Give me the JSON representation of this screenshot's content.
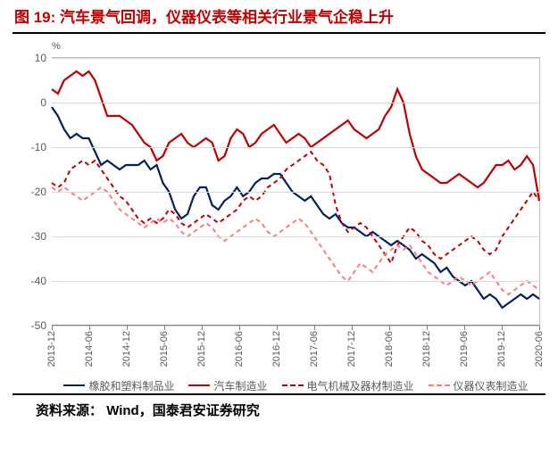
{
  "figure_label": "图 19:",
  "title": "汽车景气回调，仪器仪表等相关行业景气企稳上升",
  "title_color": "#c00000",
  "title_fontsize": 17,
  "source_label": "资料来源：",
  "source_text": "Wind，国泰君安证券研究",
  "chart": {
    "type": "line",
    "y_unit": "%",
    "ylim": [
      -50,
      10
    ],
    "ytick_step": 10,
    "yticks": [
      -50,
      -40,
      -30,
      -20,
      -10,
      0,
      10
    ],
    "grid_color": "#d9d9d9",
    "axis_color": "#808080",
    "background_color": "#ffffff",
    "x_categories": [
      "2013-12",
      "2014-06",
      "2014-12",
      "2015-06",
      "2015-12",
      "2016-06",
      "2016-12",
      "2017-06",
      "2017-12",
      "2018-06",
      "2018-12",
      "2019-06",
      "2019-12",
      "2020-06"
    ],
    "x_points_per_gap": 6,
    "series": [
      {
        "name": "橡胶和塑料制品业",
        "color": "#002060",
        "dash": "solid",
        "line_width": 2.2,
        "values": [
          -1,
          -3,
          -6,
          -8,
          -7,
          -8,
          -8,
          -11,
          -14,
          -13,
          -14,
          -15,
          -14,
          -14,
          -14,
          -13,
          -15,
          -14,
          -18,
          -20,
          -24,
          -26,
          -25,
          -21,
          -19,
          -19,
          -23,
          -24,
          -22,
          -21,
          -19,
          -21,
          -20,
          -18,
          -17,
          -17,
          -16,
          -16,
          -18,
          -20,
          -21,
          -22,
          -21,
          -23,
          -25,
          -26,
          -25,
          -27,
          -28,
          -28,
          -29,
          -30,
          -29,
          -30,
          -31,
          -32,
          -31,
          -32,
          -33,
          -35,
          -34,
          -35,
          -36,
          -38,
          -37,
          -39,
          -40,
          -41,
          -40,
          -42,
          -44,
          -43,
          -44,
          -46,
          -45,
          -44,
          -43,
          -44,
          -43,
          -44
        ]
      },
      {
        "name": "汽车制造业",
        "color": "#c00000",
        "dash": "solid",
        "line_width": 2.2,
        "values": [
          3,
          2,
          5,
          6,
          7,
          6,
          7,
          5,
          1,
          -3,
          -3,
          -3,
          -4,
          -5,
          -7,
          -9,
          -10,
          -13,
          -12,
          -9,
          -8,
          -7,
          -9,
          -10,
          -9,
          -8,
          -9,
          -13,
          -12,
          -8,
          -6,
          -7,
          -10,
          -9,
          -7,
          -6,
          -5,
          -7,
          -9,
          -8,
          -7,
          -8,
          -10,
          -9,
          -8,
          -7,
          -6,
          -5,
          -4,
          -6,
          -7,
          -8,
          -7,
          -6,
          -3,
          -1,
          3,
          0,
          -7,
          -12,
          -15,
          -16,
          -17,
          -18,
          -18,
          -17,
          -16,
          -17,
          -18,
          -19,
          -18,
          -16,
          -14,
          -14,
          -13,
          -15,
          -14,
          -12,
          -14,
          -22
        ]
      },
      {
        "name": "电气机械及器材制造业",
        "color": "#c00000",
        "dash": "dashed",
        "line_width": 2.0,
        "values": [
          -18,
          -19,
          -18,
          -15,
          -14,
          -13,
          -14,
          -13,
          -15,
          -17,
          -19,
          -21,
          -22,
          -24,
          -26,
          -27,
          -26,
          -27,
          -26,
          -24,
          -25,
          -27,
          -28,
          -27,
          -26,
          -25,
          -26,
          -27,
          -26,
          -25,
          -24,
          -22,
          -21,
          -22,
          -21,
          -19,
          -18,
          -17,
          -15,
          -14,
          -13,
          -12,
          -11,
          -13,
          -14,
          -16,
          -23,
          -27,
          -29,
          -28,
          -27,
          -28,
          -30,
          -32,
          -34,
          -36,
          -32,
          -30,
          -28,
          -29,
          -31,
          -32,
          -34,
          -35,
          -34,
          -33,
          -32,
          -31,
          -30,
          -31,
          -33,
          -34,
          -33,
          -30,
          -28,
          -26,
          -24,
          -22,
          -20,
          -22
        ]
      },
      {
        "name": "仪器仪表制造业",
        "color": "#ff7b7b",
        "dash": "dashed",
        "line_width": 2.0,
        "values": [
          -19,
          -20,
          -19,
          -20,
          -21,
          -22,
          -21,
          -20,
          -19,
          -20,
          -22,
          -24,
          -25,
          -26,
          -27,
          -28,
          -27,
          -26,
          -27,
          -26,
          -27,
          -29,
          -30,
          -29,
          -28,
          -27,
          -28,
          -30,
          -31,
          -30,
          -29,
          -28,
          -27,
          -26,
          -27,
          -29,
          -30,
          -29,
          -28,
          -27,
          -26,
          -27,
          -29,
          -31,
          -33,
          -35,
          -37,
          -39,
          -40,
          -38,
          -36,
          -37,
          -38,
          -36,
          -34,
          -33,
          -32,
          -33,
          -32,
          -34,
          -36,
          -38,
          -39,
          -40,
          -41,
          -40,
          -39,
          -40,
          -41,
          -40,
          -39,
          -38,
          -40,
          -42,
          -43,
          -42,
          -41,
          -40,
          -41,
          -42
        ]
      }
    ],
    "legend_fontsize": 12,
    "tick_fontsize": 12
  }
}
